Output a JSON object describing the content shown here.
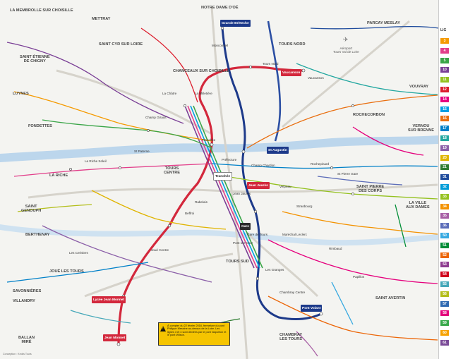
{
  "towns": {
    "la_membrolle": "LA MEMBROLLE\nSUR CHOISILLE",
    "mettray": "METTRAY",
    "notre_dame_doe": "NOTRE DAME D'OÉ",
    "saint_cyr": "SAINT CYR SUR LOIRE",
    "tours_nord": "TOURS NORD",
    "chanceaux": "CHANCEAUX SUR CHOISILLE",
    "parcay": "PARCAY MESLAY",
    "saint_etienne": "SAINT ÉTIENNE\nDE CHIGNY",
    "luynes": "LUYNES",
    "fondettes": "FONDETTES",
    "rochecorbon": "ROCHECORBON",
    "vouvray": "VOUVRAY",
    "vernou": "VERNOU\nSUR BRENNE",
    "la_riche": "LA RICHE",
    "tours_centre": "TOURS\nCENTRE",
    "saint_pierre": "SAINT PIERRE\nDES CORPS",
    "ville_aux_dames": "LA VILLE\nAUX DAMES",
    "saint_genouph": "SAINT\nGENOUPH",
    "berthenay": "BERTHENAY",
    "tours_sud": "TOURS SUD",
    "joue": "JOUÉ LES TOURS",
    "savonnieres": "SAVONNIÈRES",
    "villandry": "VILLANDRY",
    "ballan": "BALLAN\nMIRÉ",
    "saint_avertin": "SAINT AVERTIN",
    "chambray": "CHAMBRAY\nLES TOURS"
  },
  "hubs": {
    "grande_breteche": "Grande Brèteche",
    "vaucanson": "Vaucanson",
    "jean_monnet": "Jean Monnet",
    "gare": "Gare",
    "lycee_jean_monnet": "Lycée Jean Monnet",
    "saint_augustin": "St Augustin",
    "tours_nord_hub": "Tranchée",
    "jaures": "Jean Jaurès",
    "pont_volant": "Pont Volant"
  },
  "labels": {
    "tours_nord_station": "Tours Nord",
    "gare_tours": "Gare de Tours",
    "place_jean_jaures": "Jean Jaurès",
    "tranchee": "Tranchée",
    "beffroi": "Beffroi",
    "joue_centre": "Joué Centre",
    "la_riche_label": "La Riche Soleil",
    "st_pierre_gare": "St Pierre Gare",
    "vaucanson_lbl": "Vaucanson",
    "champ_girault": "Champ Girault",
    "les_granges": "Les Granges",
    "chambray_centre": "Chambray Centre",
    "la_milletiere": "La Milletière",
    "monconseil": "Monconseil",
    "strasbourg": "Strasbourg",
    "prefecture": "Préfecture",
    "velpeau": "Velpeau",
    "rabelais": "Rabelais",
    "saint_paterne": "St Paterne",
    "marechal_leclerc": "Maréchal Leclerc",
    "la_chatre": "La Châtre",
    "chateau_de_la_ville": "Rochepinard",
    "rimbaud": "Rimbaud",
    "cerisiers": "Les Cerisiers",
    "papillon": "Papillon",
    "pont_sur_cher": "Pont sur Cher",
    "duchesse_de_berry": "Champ Chardon"
  },
  "airport": "Aéroport\nTours Val de Loire",
  "notice": "À compter du 22 février 2016, fermeture du pont Philippe Messine au-dessus de la Loire. Les lignes 3 et 4 sont déviées par le pont Napoléon et le pont Wilson.",
  "credit": "Conception : Keolis Tours",
  "legend": {
    "header": "LIG",
    "lines": [
      "3",
      "4",
      "5",
      "10",
      "11",
      "12",
      "14",
      "15",
      "16",
      "17",
      "18",
      "19",
      "20",
      "21",
      "31",
      "32",
      "33",
      "34",
      "35",
      "36",
      "50",
      "51",
      "52",
      "53",
      "54",
      "55",
      "56",
      "57",
      "58",
      "59",
      "60",
      "61"
    ],
    "colors": [
      "#f59a00",
      "#e23e8a",
      "#3aa548",
      "#7a3f96",
      "#94c11f",
      "#dc1d2d",
      "#e5007d",
      "#009fe3",
      "#e96e0f",
      "#0080c8",
      "#22a7a0",
      "#8b5fa8",
      "#e0b400",
      "#2f7d32",
      "#1d4a9c",
      "#009cd8",
      "#95c11f",
      "#f39200",
      "#a75ea4",
      "#5b6cb8",
      "#36a9e1",
      "#008d36",
      "#ec6608",
      "#8e3d90",
      "#d0021b",
      "#46a8b9",
      "#b3be1a",
      "#2f6ab1",
      "#e4007c",
      "#37a84a",
      "#f6a200",
      "#7b4c98"
    ]
  },
  "colors": {
    "tram": "#d3283c",
    "bhns": "#1d3a8a",
    "loire": "#bcd6ec",
    "road": "#c9c6bd"
  }
}
